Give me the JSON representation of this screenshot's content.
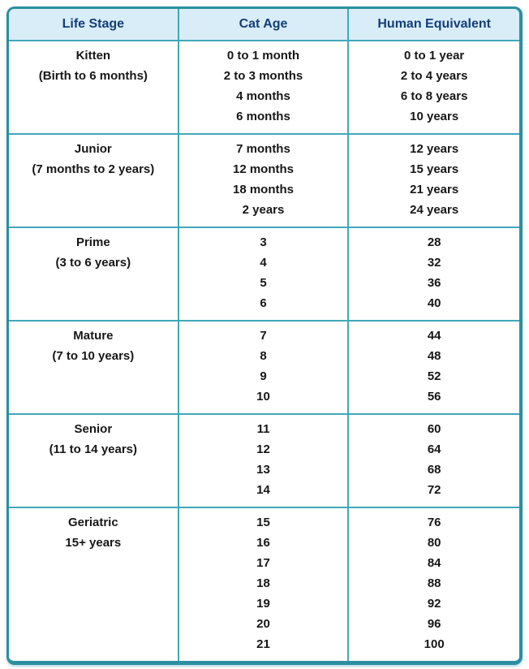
{
  "chart_data": {
    "type": "table",
    "columns": [
      "Life Stage",
      "Cat Age",
      "Human Equivalent"
    ],
    "rows": [
      {
        "life_stage": [
          "Kitten",
          "(Birth to 6 months)"
        ],
        "cat_age": [
          "0 to 1 month",
          "2 to 3 months",
          "4 months",
          "6 months"
        ],
        "human_equivalent": [
          "0 to 1 year",
          "2 to 4 years",
          "6 to 8 years",
          "10 years"
        ]
      },
      {
        "life_stage": [
          "Junior",
          "(7 months to 2 years)"
        ],
        "cat_age": [
          "7 months",
          "12 months",
          "18 months",
          "2 years"
        ],
        "human_equivalent": [
          "12 years",
          "15 years",
          "21 years",
          "24 years"
        ]
      },
      {
        "life_stage": [
          "Prime",
          "(3 to 6 years)"
        ],
        "cat_age": [
          "3",
          "4",
          "5",
          "6"
        ],
        "human_equivalent": [
          "28",
          "32",
          "36",
          "40"
        ]
      },
      {
        "life_stage": [
          "Mature",
          "(7 to 10 years)"
        ],
        "cat_age": [
          "7",
          "8",
          "9",
          "10"
        ],
        "human_equivalent": [
          "44",
          "48",
          "52",
          "56"
        ]
      },
      {
        "life_stage": [
          "Senior",
          "(11 to 14 years)"
        ],
        "cat_age": [
          "11",
          "12",
          "13",
          "14"
        ],
        "human_equivalent": [
          "60",
          "64",
          "68",
          "72"
        ]
      },
      {
        "life_stage": [
          "Geriatric",
          "15+ years"
        ],
        "cat_age": [
          "15",
          "16",
          "17",
          "18",
          "19",
          "20",
          "21"
        ],
        "human_equivalent": [
          "76",
          "80",
          "84",
          "88",
          "92",
          "96",
          "100"
        ]
      }
    ]
  },
  "colors": {
    "border": "#2b8fa0",
    "grid_line": "#41a7b8",
    "header_bg": "#d9edf8",
    "header_text": "#143e78",
    "body_text": "#171717",
    "page_bg": "#ffffff"
  }
}
